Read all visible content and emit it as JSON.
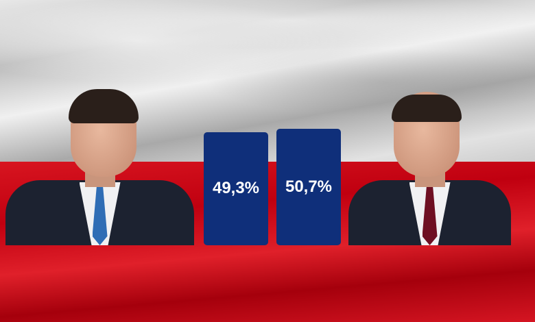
{
  "chart_data": {
    "type": "bar",
    "values": [
      49.3,
      50.7
    ],
    "labels": [
      "49,3%",
      "50,7%"
    ],
    "bar_color": "#0f2f7a",
    "label_color": "#ffffff"
  },
  "colors": {
    "flag_white": "#e0e0e0",
    "flag_red": "#c8101c"
  },
  "people": [
    {
      "tie_color": "#2f6db5"
    },
    {
      "tie_color": "#6e0f22"
    }
  ]
}
